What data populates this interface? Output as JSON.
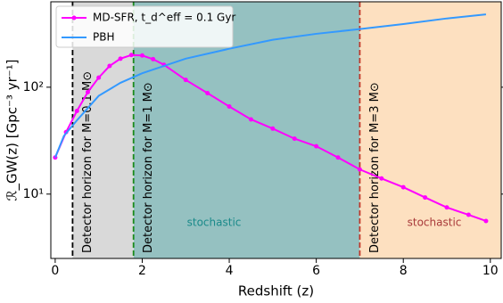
{
  "chart_data": {
    "type": "line",
    "log_y": true,
    "xlabel": "Redshift (z)",
    "ylabel": "ℛ_GW(z) [Gpc⁻³ yr⁻¹]",
    "xlim": [
      -0.1,
      10.25
    ],
    "ylim": [
      2.5,
      630
    ],
    "xticks": [
      0,
      2,
      4,
      6,
      8,
      10
    ],
    "yticks": [
      {
        "value": 10,
        "label": "10¹"
      },
      {
        "value": 100,
        "label": "10²"
      }
    ],
    "legend": "upper left",
    "series": [
      {
        "name": "MD-SFR, t_d^eff = 0.1 Gyr",
        "color": "#ff00ff",
        "markers": true,
        "x": [
          0,
          0.25,
          0.5,
          0.75,
          1,
          1.25,
          1.5,
          1.75,
          2,
          2.25,
          2.5,
          3,
          3.5,
          4,
          4.5,
          5,
          5.5,
          6,
          6.5,
          7,
          7.5,
          8,
          8.5,
          9,
          9.5,
          9.9
        ],
        "values": [
          22,
          38,
          60,
          90,
          123,
          158,
          185,
          200,
          198,
          183,
          162,
          117,
          88,
          66,
          50,
          41,
          33,
          28,
          22,
          17,
          14,
          11.6,
          9.3,
          7.5,
          6.4,
          5.6
        ]
      },
      {
        "name": "PBH",
        "color": "#3399ff",
        "markers": false,
        "x": [
          0,
          0.2,
          0.5,
          1,
          1.5,
          2,
          3,
          4,
          5,
          6,
          7,
          8,
          9,
          9.9
        ],
        "values": [
          22,
          35,
          49,
          83,
          110,
          135,
          185,
          229,
          278,
          316,
          350,
          390,
          440,
          480
        ]
      }
    ],
    "spans": [
      {
        "from": 0.4,
        "to": 1.8,
        "color": "#d9d9d9"
      },
      {
        "from": 1.8,
        "to": 7,
        "color": "#95c1c1"
      },
      {
        "from": 7,
        "to": 10.25,
        "color": "#fde0c0"
      }
    ],
    "vlines": [
      {
        "x": 0.4,
        "color": "#000000",
        "label": "Detector horizon for M=0.1 M⊙"
      },
      {
        "x": 1.8,
        "color": "#1a8a1a",
        "label": "Detector horizon for M=1 M⊙"
      },
      {
        "x": 7,
        "color": "#c0392b",
        "label": "Detector horizon for M=3 M⊙"
      }
    ],
    "annotations": [
      {
        "text": "stochastic",
        "color": "#1a8a8a"
      },
      {
        "text": "stochastic",
        "color": "#a83a3a"
      }
    ]
  }
}
